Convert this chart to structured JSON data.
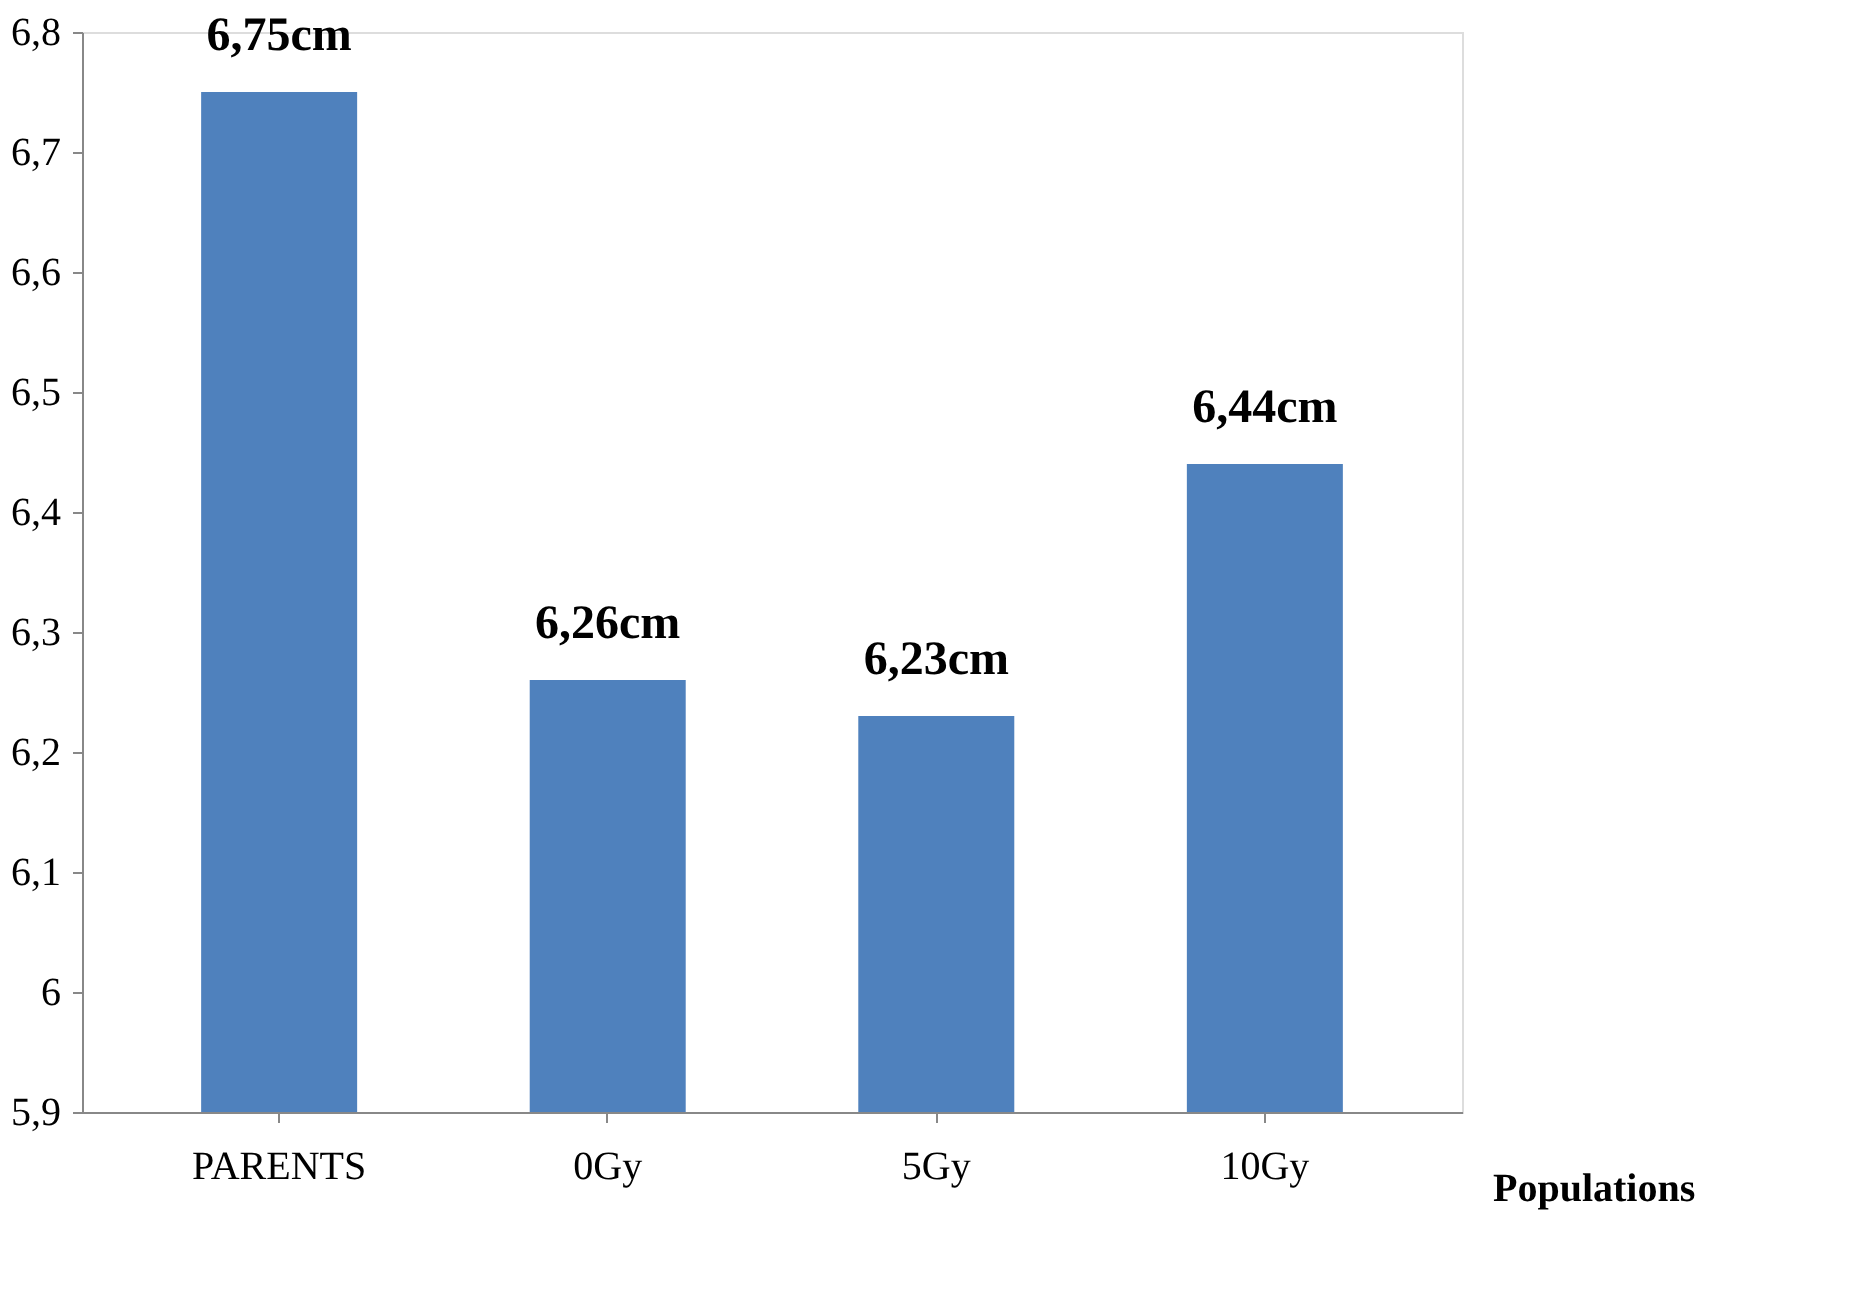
{
  "chart_data": {
    "type": "bar",
    "categories": [
      "PARENTS",
      "0Gy",
      "5Gy",
      "10Gy"
    ],
    "values": [
      6.75,
      6.26,
      6.23,
      6.44
    ],
    "value_labels": [
      "6,75cm",
      "6,26cm",
      "6,23cm",
      "6,44cm"
    ],
    "color": "#4f81bd",
    "xlabel": "Populations",
    "ylim": [
      5.9,
      6.8
    ],
    "yticks": [
      {
        "value": 5.9,
        "label": "5,9"
      },
      6,
      {
        "value": 6.1,
        "label": "6,1"
      },
      {
        "value": 6.2,
        "label": "6,2"
      },
      {
        "value": 6.3,
        "label": "6,3"
      },
      {
        "value": 6.4,
        "label": "6,4"
      },
      {
        "value": 6.5,
        "label": "6,5"
      },
      {
        "value": 6.6,
        "label": "6,6"
      },
      {
        "value": 6.7,
        "label": "6,7"
      },
      {
        "value": 6.8,
        "label": "6,8"
      }
    ],
    "grid": false
  }
}
